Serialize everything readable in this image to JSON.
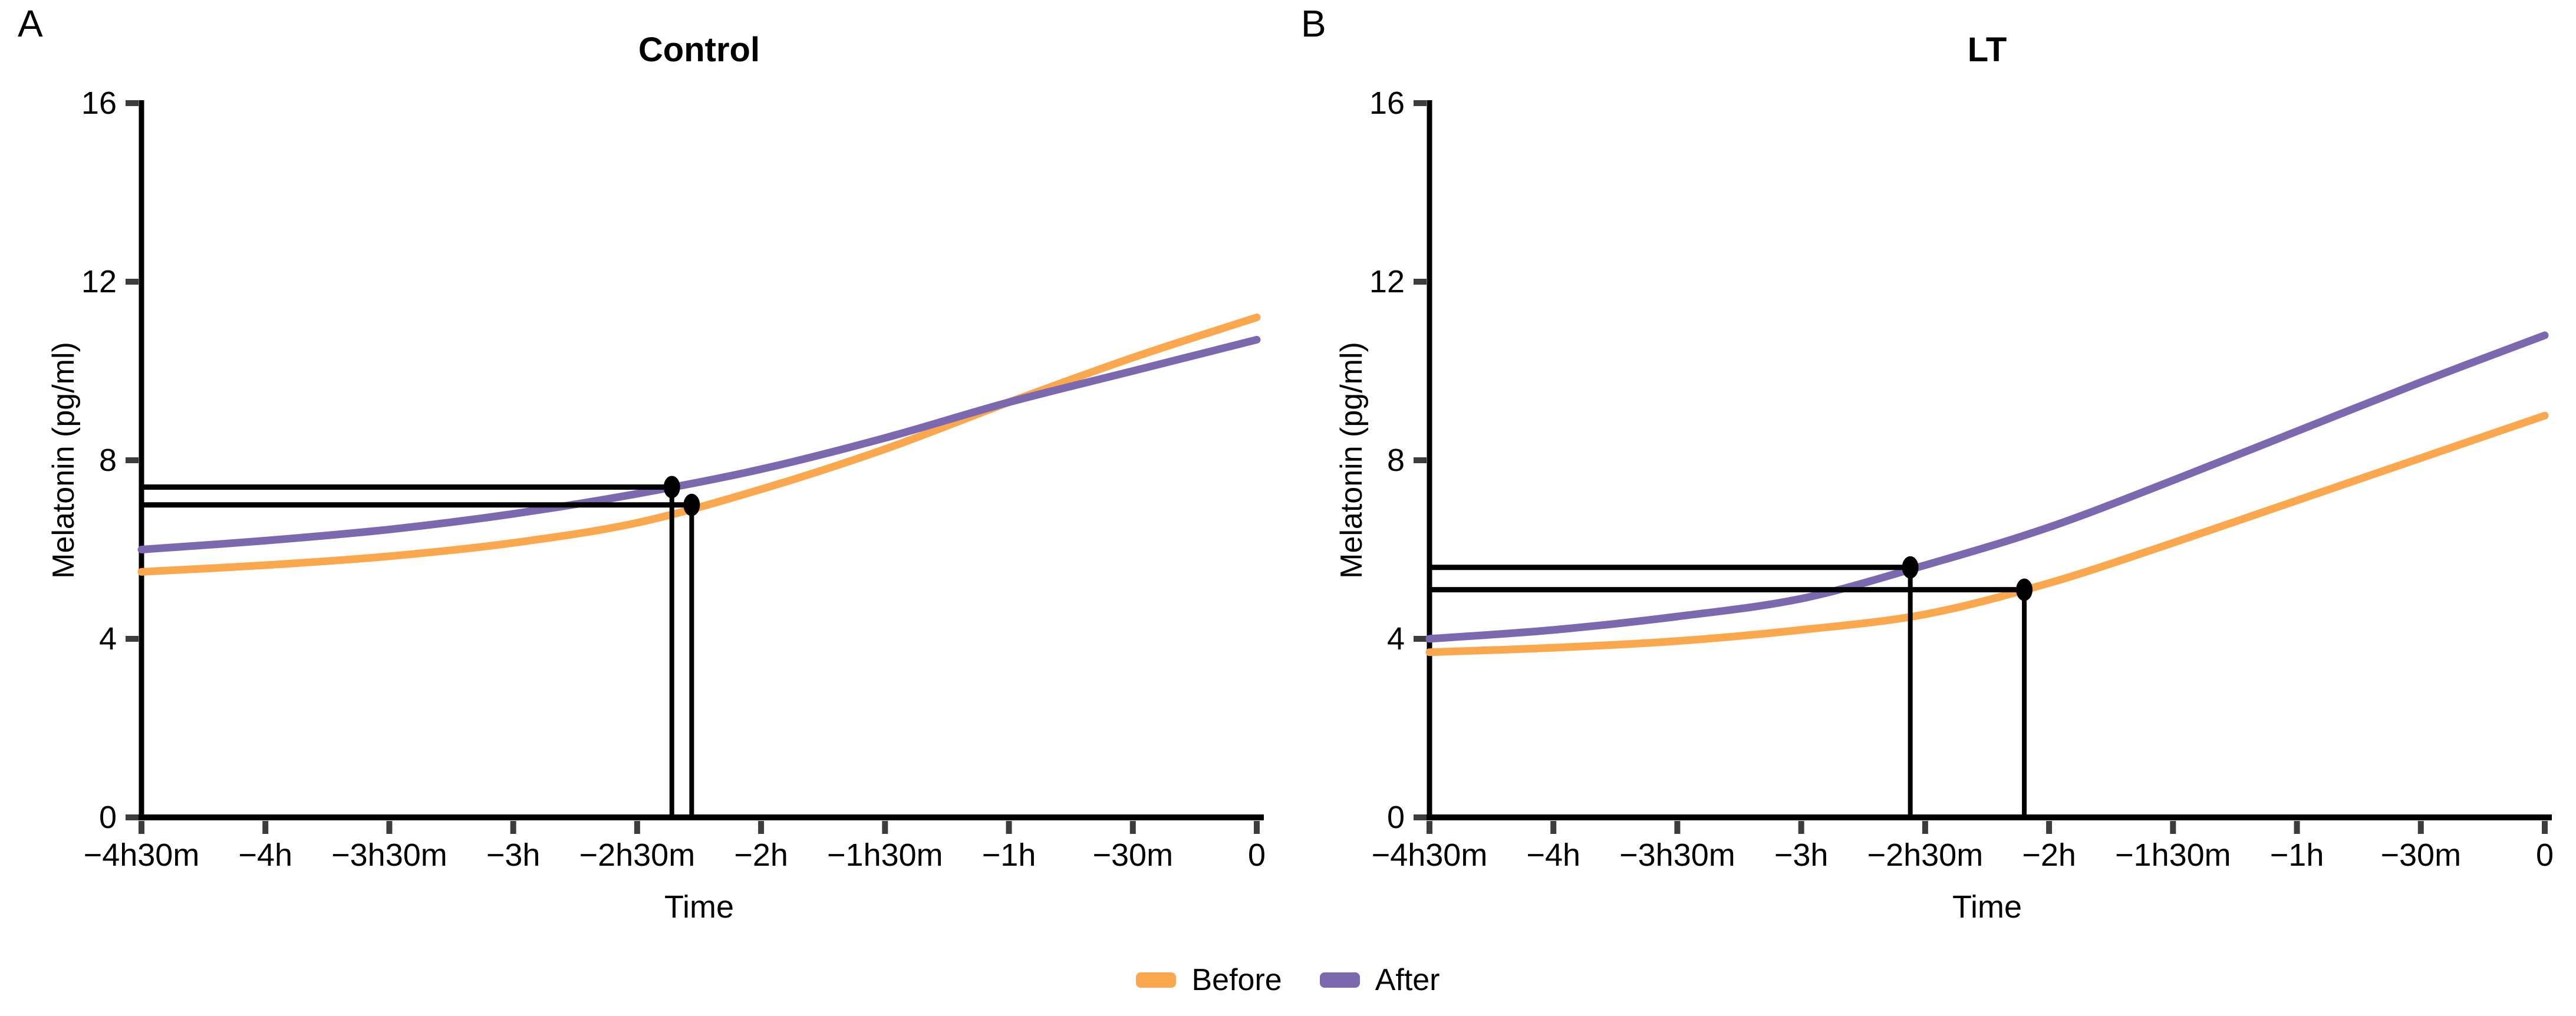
{
  "figure": {
    "panels": [
      {
        "label": "A",
        "title": "Control",
        "ylabel": "Melatonin (pg/ml)",
        "xlabel": "Time"
      },
      {
        "label": "B",
        "title": "LT",
        "ylabel": "Melatonin (pg/ml)",
        "xlabel": "Time"
      }
    ],
    "legend": {
      "items": [
        {
          "label": "Before",
          "color": "#FAA74E"
        },
        {
          "label": "After",
          "color": "#7C68AE"
        }
      ]
    }
  },
  "chart_data": [
    {
      "type": "line",
      "panel_label": "A",
      "title": "Control",
      "xlabel": "Time",
      "ylabel": "Melatonin (pg/ml)",
      "xlim": [
        -4.5,
        0
      ],
      "ylim": [
        0,
        16
      ],
      "grid": false,
      "legend_position": "bottom",
      "xticks": {
        "values": [
          -4.5,
          -4,
          -3.5,
          -3,
          -2.5,
          -2,
          -1.5,
          -1,
          -0.5,
          0
        ],
        "labels": [
          "−4h30m",
          "−4h",
          "−3h30m",
          "−3h",
          "−2h30m",
          "−2h",
          "−1h30m",
          "−1h",
          "−30m",
          "0"
        ]
      },
      "yticks": {
        "values": [
          0,
          4,
          8,
          12,
          16
        ],
        "labels": [
          "0",
          "4",
          "8",
          "12",
          "16"
        ]
      },
      "x": [
        -4.5,
        -4,
        -3.5,
        -3,
        -2.5,
        -2,
        -1.5,
        -1,
        -0.5,
        0
      ],
      "series": [
        {
          "name": "Before",
          "color": "#FAA74E",
          "values": [
            5.5,
            5.65,
            5.85,
            6.15,
            6.6,
            7.35,
            8.25,
            9.3,
            10.3,
            11.2
          ]
        },
        {
          "name": "After",
          "color": "#7C68AE",
          "values": [
            6.0,
            6.2,
            6.45,
            6.8,
            7.25,
            7.8,
            8.5,
            9.3,
            10.0,
            10.7
          ]
        }
      ],
      "markers": [
        {
          "series": "After",
          "x": -2.36,
          "y": 7.4,
          "crosshair": true
        },
        {
          "series": "Before",
          "x": -2.28,
          "y": 7.0,
          "crosshair": true
        }
      ]
    },
    {
      "type": "line",
      "panel_label": "B",
      "title": "LT",
      "xlabel": "Time",
      "ylabel": "Melatonin (pg/ml)",
      "xlim": [
        -4.5,
        0
      ],
      "ylim": [
        0,
        16
      ],
      "grid": false,
      "legend_position": "bottom",
      "xticks": {
        "values": [
          -4.5,
          -4,
          -3.5,
          -3,
          -2.5,
          -2,
          -1.5,
          -1,
          -0.5,
          0
        ],
        "labels": [
          "−4h30m",
          "−4h",
          "−3h30m",
          "−3h",
          "−2h30m",
          "−2h",
          "−1h30m",
          "−1h",
          "−30m",
          "0"
        ]
      },
      "yticks": {
        "values": [
          0,
          4,
          8,
          12,
          16
        ],
        "labels": [
          "0",
          "4",
          "8",
          "12",
          "16"
        ]
      },
      "x": [
        -4.5,
        -4,
        -3.5,
        -3,
        -2.5,
        -2,
        -1.5,
        -1,
        -0.5,
        0
      ],
      "series": [
        {
          "name": "Before",
          "color": "#FAA74E",
          "values": [
            3.7,
            3.8,
            3.95,
            4.2,
            4.55,
            5.25,
            6.15,
            7.1,
            8.05,
            9.0
          ]
        },
        {
          "name": "After",
          "color": "#7C68AE",
          "values": [
            4.0,
            4.2,
            4.5,
            4.9,
            5.65,
            6.5,
            7.55,
            8.65,
            9.75,
            10.8
          ]
        }
      ],
      "markers": [
        {
          "series": "After",
          "x": -2.56,
          "y": 5.6,
          "crosshair": true
        },
        {
          "series": "Before",
          "x": -2.1,
          "y": 5.1,
          "crosshair": true
        }
      ]
    }
  ]
}
